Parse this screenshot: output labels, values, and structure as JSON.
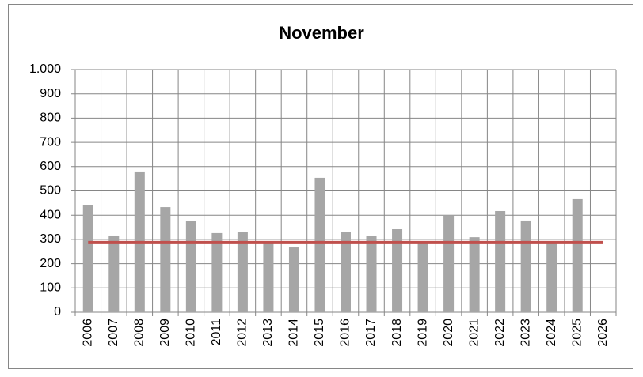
{
  "chart_data": {
    "type": "bar",
    "title": "November",
    "categories": [
      "2006",
      "2007",
      "2008",
      "2009",
      "2010",
      "2011",
      "2012",
      "2013",
      "2014",
      "2015",
      "2016",
      "2017",
      "2018",
      "2019",
      "2020",
      "2021",
      "2022",
      "2023",
      "2024",
      "2025",
      "2026"
    ],
    "series": [
      {
        "type": "bar",
        "color": "#a6a6a6",
        "values": [
          440,
          316,
          580,
          433,
          375,
          326,
          332,
          284,
          267,
          554,
          329,
          313,
          342,
          285,
          400,
          309,
          417,
          378,
          284,
          466,
          null
        ]
      },
      {
        "type": "line",
        "color": "#c0504d",
        "values": [
          287,
          287,
          287,
          287,
          287,
          287,
          287,
          287,
          287,
          287,
          287,
          287,
          287,
          287,
          287,
          287,
          287,
          287,
          287,
          287,
          287
        ]
      }
    ],
    "ylim": [
      0,
      1000
    ],
    "yticks": [
      0,
      100,
      200,
      300,
      400,
      500,
      600,
      700,
      800,
      900,
      {
        "value": 1000,
        "label": "1.000"
      }
    ],
    "grid": true
  }
}
